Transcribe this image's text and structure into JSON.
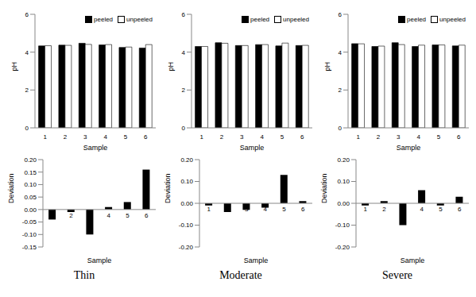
{
  "chart_data": [
    {
      "type": "bar",
      "categories": [
        "1",
        "2",
        "3",
        "4",
        "5",
        "6"
      ],
      "xlabel": "Sample",
      "ylabel": "pH",
      "ylim": [
        0,
        6
      ],
      "yticks": [
        0,
        2,
        4,
        6
      ],
      "legend": "upper right",
      "series": [
        {
          "name": "peeled",
          "color": "#000000",
          "values": [
            4.33,
            4.37,
            4.47,
            4.38,
            4.25,
            4.22
          ]
        },
        {
          "name": "unpeeled",
          "color": "#ffffff",
          "values": [
            4.34,
            4.36,
            4.41,
            4.4,
            4.27,
            4.4
          ]
        }
      ]
    },
    {
      "type": "bar",
      "categories": [
        "1",
        "2",
        "3",
        "4",
        "5",
        "6"
      ],
      "xlabel": "Sample",
      "ylabel": "pH",
      "ylim": [
        0,
        6
      ],
      "yticks": [
        0,
        2,
        4,
        6
      ],
      "legend": "upper right",
      "series": [
        {
          "name": "peeled",
          "color": "#000000",
          "values": [
            4.3,
            4.5,
            4.35,
            4.4,
            4.33,
            4.35
          ]
        },
        {
          "name": "unpeeled",
          "color": "#ffffff",
          "values": [
            4.3,
            4.47,
            4.35,
            4.4,
            4.48,
            4.36
          ]
        }
      ]
    },
    {
      "type": "bar",
      "categories": [
        "1",
        "2",
        "3",
        "4",
        "5",
        "6"
      ],
      "xlabel": "Sample",
      "ylabel": "pH",
      "ylim": [
        0,
        6
      ],
      "yticks": [
        0,
        2,
        4,
        6
      ],
      "legend": "upper right",
      "series": [
        {
          "name": "peeled",
          "color": "#000000",
          "values": [
            4.45,
            4.3,
            4.5,
            4.3,
            4.38,
            4.33
          ]
        },
        {
          "name": "unpeeled",
          "color": "#ffffff",
          "values": [
            4.44,
            4.32,
            4.4,
            4.37,
            4.38,
            4.37
          ]
        }
      ]
    },
    {
      "type": "bar",
      "categories": [
        "1",
        "2",
        "3",
        "4",
        "5",
        "6"
      ],
      "xlabel": "Sample",
      "ylabel": "Deviation",
      "caption": "Thin",
      "values": [
        -0.04,
        -0.01,
        -0.1,
        0.01,
        0.03,
        0.16
      ],
      "color": "#000000",
      "ylim": [
        -0.15,
        0.2
      ],
      "yticks": [
        {
          "value": -0.15,
          "label": "-0.15"
        },
        {
          "value": -0.1,
          "label": "-0.10"
        },
        {
          "value": -0.05,
          "label": "-0.05"
        },
        {
          "value": 0,
          "label": "0.00"
        },
        {
          "value": 0.05,
          "label": "0.05"
        },
        {
          "value": 0.1,
          "label": "0.10"
        },
        {
          "value": 0.15,
          "label": "0.15"
        },
        {
          "value": 0.2,
          "label": "0.20"
        }
      ]
    },
    {
      "type": "bar",
      "categories": [
        "1",
        "2",
        "3",
        "4",
        "5",
        "6"
      ],
      "xlabel": "Sample",
      "ylabel": "Deviation",
      "caption": "Moderate",
      "values": [
        -0.01,
        -0.04,
        -0.03,
        -0.02,
        0.13,
        0.01
      ],
      "color": "#000000",
      "ylim": [
        -0.2,
        0.2
      ],
      "yticks": [
        {
          "value": -0.2,
          "label": "-0.20"
        },
        {
          "value": -0.15,
          "label": "-0.15"
        },
        {
          "value": -0.1,
          "label": "-0.10"
        },
        {
          "value": -0.05,
          "label": "-0.05"
        },
        {
          "value": 0,
          "label": "0.00"
        },
        {
          "value": 0.05,
          "label": "0.05"
        },
        {
          "value": 0.1,
          "label": "0.10"
        },
        {
          "value": 0.15,
          "label": "0.15"
        },
        {
          "value": 0.2,
          "label": "0.20"
        }
      ]
    },
    {
      "type": "bar",
      "categories": [
        "1",
        "2",
        "3",
        "4",
        "5",
        "6"
      ],
      "xlabel": "Sample",
      "ylabel": "Deviation",
      "caption": "Severe",
      "values": [
        -0.01,
        0.01,
        -0.1,
        0.06,
        -0.01,
        0.03
      ],
      "color": "#000000",
      "ylim": [
        -0.2,
        0.2
      ],
      "yticks": [
        {
          "value": -0.2,
          "label": "-0.20"
        },
        {
          "value": -0.15,
          "label": "-0.15"
        },
        {
          "value": -0.1,
          "label": "-0.10"
        },
        {
          "value": -0.05,
          "label": "-0.05"
        },
        {
          "value": 0,
          "label": "0.00"
        },
        {
          "value": 0.05,
          "label": "0.05"
        },
        {
          "value": 0.1,
          "label": "0.10"
        },
        {
          "value": 0.15,
          "label": "0.15"
        },
        {
          "value": 0.2,
          "label": "0.20"
        }
      ]
    }
  ]
}
